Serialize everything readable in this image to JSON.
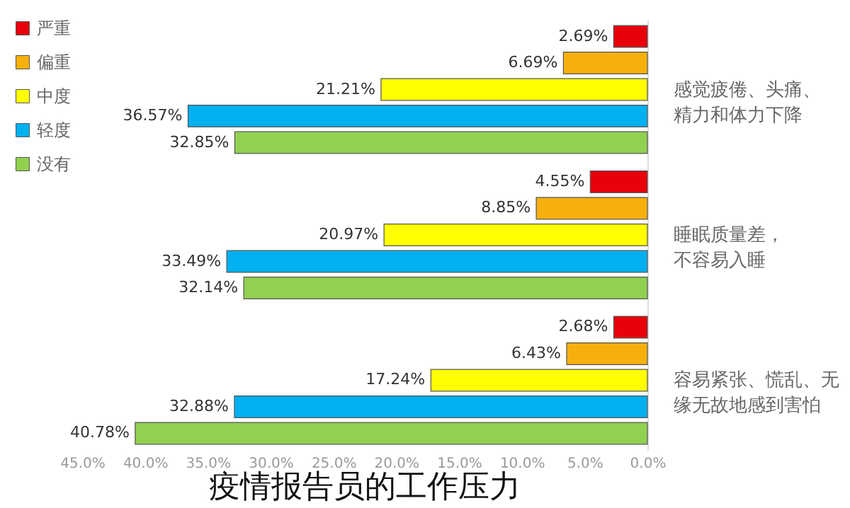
{
  "chart_data": {
    "type": "bar",
    "orientation": "horizontal",
    "title": "疫情报告员的工作压力",
    "categories": [
      "感觉疲倦、头痛、精力和体力下降",
      "睡眠质量差，不容易入睡",
      "容易紧张、慌乱、无缘无故地感到害怕"
    ],
    "series": [
      {
        "name": "严重",
        "color": "#e8000b",
        "values": [
          2.69,
          4.55,
          2.68
        ],
        "value_labels": [
          "2.69%",
          "4.55%",
          "2.68%"
        ]
      },
      {
        "name": "偏重",
        "color": "#f5b00c",
        "values": [
          6.69,
          8.85,
          6.43
        ],
        "value_labels": [
          "6.69%",
          "8.85%",
          "6.43%"
        ]
      },
      {
        "name": "中度",
        "color": "#ffff00",
        "values": [
          21.21,
          20.97,
          17.24
        ],
        "value_labels": [
          "21.21%",
          "20.97%",
          "17.24%"
        ]
      },
      {
        "name": "轻度",
        "color": "#00b0f0",
        "values": [
          36.57,
          33.49,
          32.88
        ],
        "value_labels": [
          "36.57%",
          "33.49%",
          "32.88%"
        ]
      },
      {
        "name": "没有",
        "color": "#92d050",
        "values": [
          32.85,
          32.14,
          40.78
        ],
        "value_labels": [
          "32.85%",
          "32.14%",
          "40.78%"
        ]
      }
    ],
    "xlim": [
      45,
      0
    ],
    "xticks": [
      {
        "value": 0,
        "label": "0.0%"
      },
      {
        "value": 5,
        "label": "5.0%"
      },
      {
        "value": 10,
        "label": "10.0%"
      },
      {
        "value": 15,
        "label": "15.0%"
      },
      {
        "value": 20,
        "label": "20.0%"
      },
      {
        "value": 25,
        "label": "25.0%"
      },
      {
        "value": 30,
        "label": "30.0%"
      },
      {
        "value": 35,
        "label": "35.0%"
      },
      {
        "value": 40,
        "label": "40.0%"
      },
      {
        "value": 45,
        "label": "45.0%"
      }
    ],
    "legend": "left",
    "grid": false
  }
}
